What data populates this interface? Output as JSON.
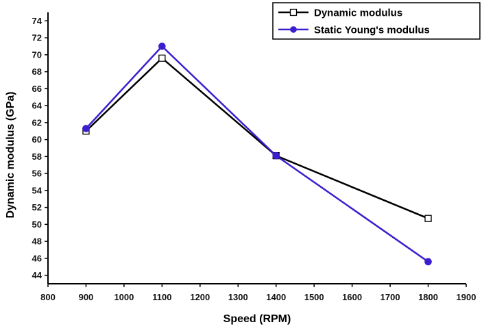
{
  "chart_data": {
    "type": "line",
    "title": "",
    "xlabel": "Speed (RPM)",
    "ylabel": "Dynamic modulus (GPa)",
    "xlim": [
      800,
      1900
    ],
    "ylim": [
      43,
      75
    ],
    "xticks": [
      800,
      900,
      1000,
      1100,
      1200,
      1300,
      1400,
      1500,
      1600,
      1700,
      1800,
      1900
    ],
    "yticks": [
      44,
      46,
      48,
      50,
      52,
      54,
      56,
      58,
      60,
      62,
      64,
      66,
      68,
      70,
      72,
      74
    ],
    "grid": false,
    "legend_position": "top-right",
    "series": [
      {
        "name": "Dynamic modulus",
        "color": "#000000",
        "marker": "open-square",
        "x": [
          900,
          1100,
          1400,
          1800
        ],
        "y": [
          61.0,
          69.6,
          58.1,
          50.7
        ]
      },
      {
        "name": "Static Young's modulus",
        "color": "#3a1fd0",
        "marker": "filled-circle",
        "x": [
          900,
          1100,
          1400,
          1800
        ],
        "y": [
          61.3,
          71.0,
          58.1,
          45.6
        ]
      }
    ]
  }
}
